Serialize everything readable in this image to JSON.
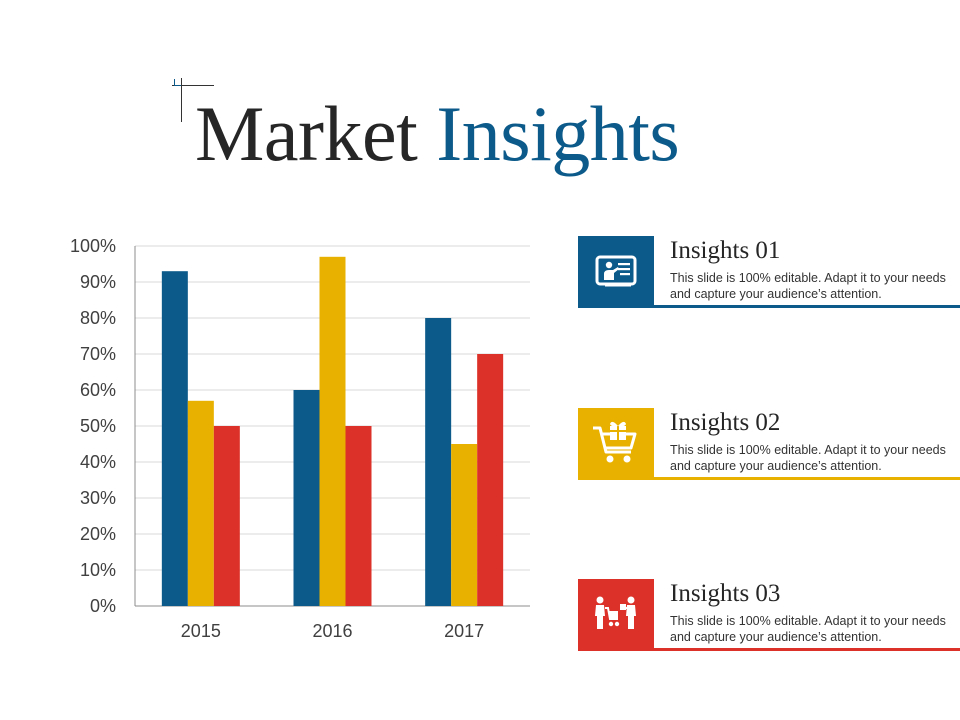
{
  "title": {
    "part1": "Market",
    "part2": "Insights"
  },
  "colors": {
    "blue": "#0b5a8a",
    "yellow": "#e8b100",
    "red": "#dc3128",
    "title_blue": "#0b5a8a"
  },
  "chart_data": {
    "type": "bar",
    "categories": [
      "2015",
      "2016",
      "2017"
    ],
    "series": [
      {
        "values": [
          93,
          60,
          80
        ],
        "color": "#0b5a8a"
      },
      {
        "values": [
          57,
          97,
          45
        ],
        "color": "#e8b100"
      },
      {
        "values": [
          50,
          50,
          70
        ],
        "color": "#dc3128"
      }
    ],
    "yticks": [
      "0%",
      "10%",
      "20%",
      "30%",
      "40%",
      "50%",
      "60%",
      "70%",
      "80%",
      "90%",
      "100%"
    ],
    "ylim": [
      0,
      100
    ],
    "grid": true,
    "legend": "none"
  },
  "insights": [
    {
      "title": "Insights 01",
      "text": "This slide is 100% editable. Adapt it to your needs and capture your audience’s attention.",
      "icon": "presentation-icon",
      "color": "#0b5a8a"
    },
    {
      "title": "Insights 02",
      "text": "This slide is 100% editable. Adapt it to your needs and capture your audience’s attention.",
      "icon": "gift-cart-icon",
      "color": "#e8b100"
    },
    {
      "title": "Insights 03",
      "text": "This slide is 100% editable. Adapt it to your needs and capture your audience’s attention.",
      "icon": "shopping-people-icon",
      "color": "#dc3128"
    }
  ]
}
